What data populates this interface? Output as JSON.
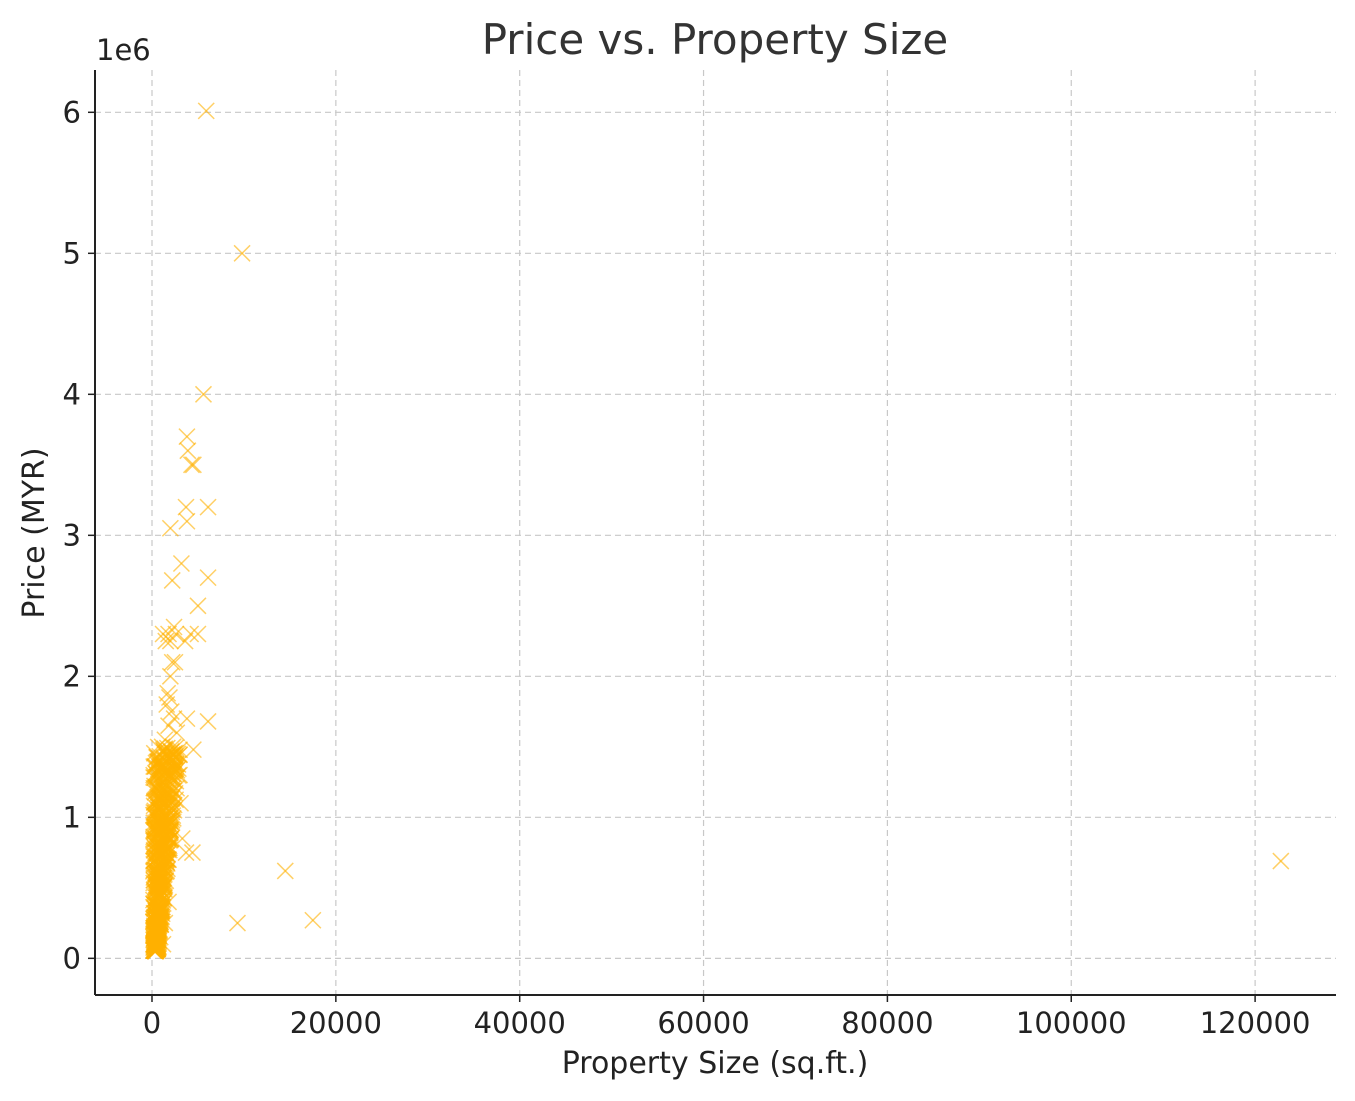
{
  "chart_data": {
    "type": "scatter",
    "title": "Price vs. Property Size",
    "xlabel": "Property Size (sq.ft.)",
    "ylabel": "Price (MYR)",
    "y_offset_label": "1e6",
    "xlim": [
      -6200,
      128800
    ],
    "ylim": [
      -0.26,
      6.3
    ],
    "y_scale_factor": 1000000,
    "x_ticks": [
      0,
      20000,
      40000,
      60000,
      80000,
      100000,
      120000
    ],
    "x_tick_labels": [
      "0",
      "20000",
      "40000",
      "60000",
      "80000",
      "100000",
      "120000"
    ],
    "y_ticks": [
      0,
      1,
      2,
      3,
      4,
      5,
      6
    ],
    "y_tick_labels": [
      "0",
      "1",
      "2",
      "3",
      "4",
      "5",
      "6"
    ],
    "grid": true,
    "marker": "x",
    "color": "#FFB000",
    "series": [
      {
        "points": [
          [
            5900,
            6.01
          ],
          [
            9800,
            5.0
          ],
          [
            5600,
            4.0
          ],
          [
            3800,
            3.7
          ],
          [
            3900,
            3.6
          ],
          [
            4500,
            3.5
          ],
          [
            4300,
            3.5
          ],
          [
            3700,
            3.2
          ],
          [
            6100,
            3.2
          ],
          [
            3800,
            3.1
          ],
          [
            2000,
            3.05
          ],
          [
            3200,
            2.8
          ],
          [
            6100,
            2.7
          ],
          [
            2200,
            2.68
          ],
          [
            5000,
            2.5
          ],
          [
            2400,
            2.35
          ],
          [
            1200,
            2.3
          ],
          [
            1800,
            2.3
          ],
          [
            2600,
            2.3
          ],
          [
            4200,
            2.3
          ],
          [
            5000,
            2.3
          ],
          [
            1500,
            2.25
          ],
          [
            2000,
            2.25
          ],
          [
            3600,
            2.25
          ],
          [
            2200,
            2.1
          ],
          [
            2500,
            2.1
          ],
          [
            2000,
            2.0
          ],
          [
            1700,
            1.88
          ],
          [
            1900,
            1.85
          ],
          [
            1600,
            1.8
          ],
          [
            2100,
            1.75
          ],
          [
            2400,
            1.7
          ],
          [
            3800,
            1.7
          ],
          [
            6100,
            1.68
          ],
          [
            1800,
            1.65
          ],
          [
            2700,
            1.6
          ],
          [
            1400,
            1.55
          ],
          [
            2300,
            1.5
          ],
          [
            1100,
            1.5
          ],
          [
            4500,
            1.48
          ],
          [
            2800,
            1.45
          ],
          [
            1500,
            1.4
          ],
          [
            3000,
            1.3
          ],
          [
            1900,
            1.25
          ],
          [
            2200,
            1.2
          ],
          [
            1300,
            1.2
          ],
          [
            3100,
            1.1
          ],
          [
            2400,
            1.05
          ],
          [
            1600,
            1.0
          ],
          [
            3300,
            0.85
          ],
          [
            4400,
            0.75
          ],
          [
            3700,
            0.75
          ],
          [
            2000,
            0.9
          ],
          [
            1200,
            0.95
          ],
          [
            900,
            0.85
          ],
          [
            1400,
            0.8
          ],
          [
            1800,
            0.7
          ],
          [
            1000,
            0.65
          ],
          [
            700,
            0.6
          ],
          [
            1500,
            0.55
          ],
          [
            1200,
            0.5
          ],
          [
            800,
            0.45
          ],
          [
            1800,
            0.4
          ],
          [
            600,
            0.35
          ],
          [
            1000,
            0.3
          ],
          [
            1400,
            0.25
          ],
          [
            500,
            0.2
          ],
          [
            900,
            0.15
          ],
          [
            1200,
            0.1
          ],
          [
            700,
            0.08
          ],
          [
            14500,
            0.62
          ],
          [
            17500,
            0.27
          ],
          [
            9300,
            0.25
          ],
          [
            122800,
            0.69
          ]
        ]
      }
    ],
    "dense_cluster": {
      "x_range": [
        0,
        3000
      ],
      "y_range": [
        0.05,
        1.5
      ]
    }
  }
}
